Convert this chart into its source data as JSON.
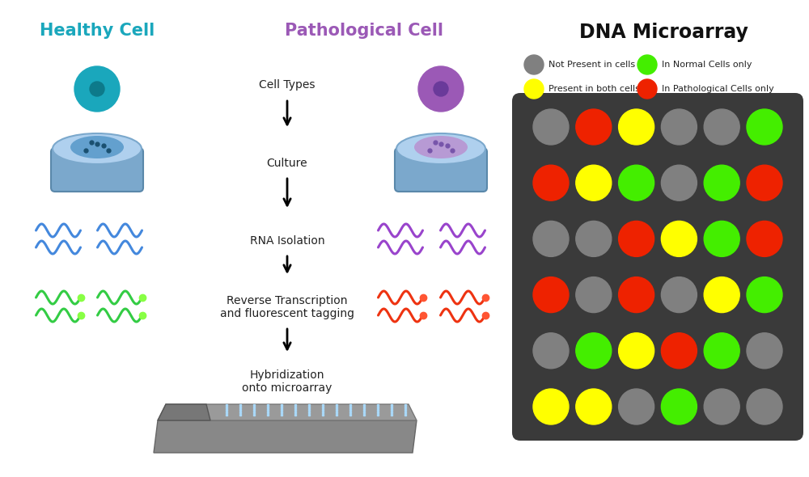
{
  "title": "DNA Microarray",
  "title_color": "#111111",
  "healthy_cell_title": "Healthy Cell",
  "healthy_cell_color": "#1aa7bc",
  "pathological_cell_title": "Pathological Cell",
  "pathological_cell_color": "#9b59b6",
  "steps": [
    "Cell Types",
    "Culture",
    "RNA Isolation",
    "Reverse Transcription\nand fluorescent tagging",
    "Hybridization\nonto microarray"
  ],
  "legend_items": [
    {
      "color": "#808080",
      "label": "Not Present in cells"
    },
    {
      "color": "#ffff00",
      "label": "Present in both cells"
    },
    {
      "color": "#44ee00",
      "label": "In Normal Cells only"
    },
    {
      "color": "#ee2200",
      "label": "In Pathological Cells only"
    }
  ],
  "grid_colors": [
    [
      "#808080",
      "#ee2200",
      "#ffff00",
      "#808080",
      "#808080",
      "#44ee00"
    ],
    [
      "#ee2200",
      "#ffff00",
      "#44ee00",
      "#808080",
      "#44ee00",
      "#ee2200"
    ],
    [
      "#808080",
      "#808080",
      "#ee2200",
      "#ffff00",
      "#44ee00",
      "#ee2200"
    ],
    [
      "#ee2200",
      "#808080",
      "#ee2200",
      "#808080",
      "#ffff00",
      "#44ee00"
    ],
    [
      "#808080",
      "#44ee00",
      "#ffff00",
      "#ee2200",
      "#44ee00",
      "#808080"
    ],
    [
      "#ffff00",
      "#ffff00",
      "#808080",
      "#44ee00",
      "#808080",
      "#808080"
    ]
  ],
  "bg_color": "#ffffff",
  "grid_bg": "#3a3a3a"
}
